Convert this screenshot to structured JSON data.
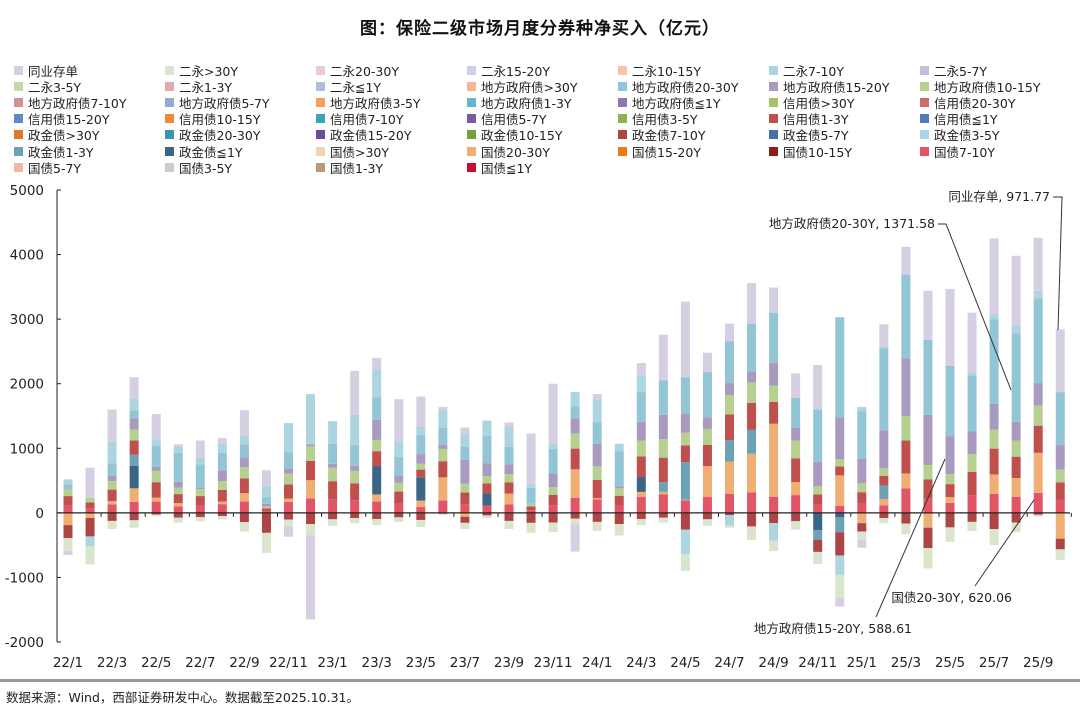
{
  "title": "图：保险二级市场月度分券种净买入（亿元）",
  "footer": "数据来源：Wind，西部证券研发中心。数据截至2025.10.31。",
  "chart_data": {
    "type": "bar",
    "stacked": true,
    "title": "图：保险二级市场月度分券种净买入（亿元）",
    "ylim": [
      -2000,
      5000
    ],
    "yticks": [
      -2000,
      -1000,
      0,
      1000,
      2000,
      3000,
      4000,
      5000
    ],
    "grid": false,
    "legend_position": "top",
    "categories": [
      "22/1",
      "22/2",
      "22/3",
      "22/4",
      "22/5",
      "22/6",
      "22/7",
      "22/8",
      "22/9",
      "22/10",
      "22/11",
      "22/12",
      "23/1",
      "23/2",
      "23/3",
      "23/4",
      "23/5",
      "23/6",
      "23/7",
      "23/8",
      "23/9",
      "23/10",
      "23/11",
      "23/12",
      "24/1",
      "24/2",
      "24/3",
      "24/4",
      "24/5",
      "24/6",
      "24/7",
      "24/8",
      "24/9",
      "24/10",
      "24/11",
      "24/12",
      "25/1",
      "25/2",
      "25/3",
      "25/4",
      "25/5",
      "25/6",
      "25/7",
      "25/8",
      "25/9",
      "25/10"
    ],
    "xtick_labels": [
      "22/1",
      "22/3",
      "22/5",
      "22/7",
      "22/9",
      "22/11",
      "23/1",
      "23/3",
      "23/5",
      "23/7",
      "23/9",
      "23/11",
      "24/1",
      "24/3",
      "24/5",
      "24/7",
      "24/9",
      "24/11",
      "25/1",
      "25/3",
      "25/5",
      "25/7",
      "25/9"
    ],
    "series": [
      {
        "name": "同业存单",
        "color": "#D5CFE1",
        "values": [
          -60,
          470,
          500,
          330,
          390,
          30,
          270,
          90,
          400,
          240,
          -160,
          -1300,
          0,
          680,
          180,
          650,
          470,
          50,
          100,
          0,
          60,
          780,
          930,
          -420,
          80,
          0,
          200,
          710,
          1170,
          300,
          270,
          630,
          390,
          380,
          690,
          -130,
          -120,
          350,
          430,
          760,
          1190,
          930,
          1170,
          1080,
          820,
          971.77
        ]
      },
      {
        "name": "二永>30Y",
        "color": "#D9E5CC",
        "values": [
          -200,
          -285,
          -125,
          -115,
          -25,
          -75,
          -65,
          -50,
          -145,
          -310,
          -105,
          -175,
          -100,
          -80,
          -95,
          -70,
          -110,
          -15,
          -95,
          -40,
          -125,
          -155,
          -150,
          -90,
          -140,
          -175,
          -95,
          -75,
          -260,
          -100,
          -35,
          -210,
          -160,
          -130,
          -185,
          -360,
          -130,
          -80,
          -165,
          -315,
          -225,
          -140,
          -250,
          -150,
          -30,
          -165
        ]
      },
      {
        "name": "二永20-30Y",
        "color": "#EBCBCB"
      },
      {
        "name": "二永15-20Y",
        "color": "#C9D2E4"
      },
      {
        "name": "二永10-15Y",
        "color": "#FAC3A6"
      },
      {
        "name": "二永7-10Y",
        "color": "#ADD5E0",
        "values": [
          80,
          -150,
          330,
          180,
          100,
          100,
          100,
          140,
          130,
          180,
          450,
          780,
          350,
          470,
          430,
          240,
          120,
          270,
          200,
          240,
          320,
          60,
          80,
          220,
          360,
          120,
          250,
          0,
          -380,
          0,
          -160,
          0,
          -270,
          0,
          0,
          -300,
          70,
          20,
          0,
          0,
          0,
          40,
          80,
          120,
          120,
          0
        ]
      },
      {
        "name": "二永5-7Y",
        "color": "#C7BDD9"
      },
      {
        "name": "二永3-5Y",
        "color": "#C3D9A6"
      },
      {
        "name": "二永1-3Y",
        "color": "#DFAAAA"
      },
      {
        "name": "二永≦1Y",
        "color": "#AEBFDD"
      },
      {
        "name": "地方政府债>30Y",
        "color": "#F8B495"
      },
      {
        "name": "地方政府债20-30Y",
        "color": "#92C5D6",
        "values": [
          70,
          0,
          200,
          130,
          330,
          450,
          360,
          270,
          200,
          100,
          250,
          0,
          310,
          320,
          350,
          300,
          300,
          270,
          200,
          420,
          270,
          250,
          380,
          190,
          330,
          540,
          460,
          530,
          560,
          700,
          650,
          740,
          780,
          460,
          810,
          1550,
          730,
          1270,
          1300,
          1160,
          1090,
          870,
          1310,
          1371.58,
          1310,
          820
        ]
      },
      {
        "name": "地方政府债15-20Y",
        "color": "#A99BC0",
        "values": [
          0,
          0,
          80,
          170,
          60,
          90,
          20,
          170,
          150,
          40,
          80,
          30,
          60,
          80,
          310,
          100,
          150,
          60,
          370,
          200,
          150,
          0,
          210,
          230,
          350,
          30,
          290,
          380,
          300,
          180,
          190,
          170,
          350,
          200,
          380,
          650,
          380,
          590,
          890,
          780,
          588.61,
          350,
          400,
          290,
          350,
          380
        ]
      },
      {
        "name": "地方政府债10-15Y",
        "color": "#B6D08F",
        "values": [
          110,
          70,
          130,
          170,
          175,
          100,
          110,
          135,
          175,
          30,
          170,
          225,
          210,
          195,
          175,
          140,
          90,
          190,
          135,
          115,
          130,
          40,
          120,
          235,
          210,
          115,
          245,
          285,
          195,
          245,
          295,
          315,
          250,
          275,
          125,
          110,
          140,
          115,
          380,
          220,
          155,
          275,
          295,
          250,
          310,
          200
        ]
      },
      {
        "name": "地方政府债7-10Y",
        "color": "#D49393"
      },
      {
        "name": "地方政府债5-7Y",
        "color": "#95ABD4"
      },
      {
        "name": "地方政府债3-5Y",
        "color": "#F5A05E"
      },
      {
        "name": "地方政府债1-3Y",
        "color": "#62B7CA"
      },
      {
        "name": "地方政府债≦1Y",
        "color": "#8E78B4"
      },
      {
        "name": "信用债>30Y",
        "color": "#A3C46A"
      },
      {
        "name": "信用债20-30Y",
        "color": "#CB6C6C"
      },
      {
        "name": "信用债15-20Y",
        "color": "#5F88C4"
      },
      {
        "name": "信用债10-15Y",
        "color": "#EE8B3A"
      },
      {
        "name": "信用债7-10Y",
        "color": "#3FA2BD"
      },
      {
        "name": "信用债5-7Y",
        "color": "#7A5BA3"
      },
      {
        "name": "信用债3-5Y",
        "color": "#8DB44C"
      },
      {
        "name": "信用债1-3Y",
        "color": "#C0504D",
        "values": [
          150,
          90,
          180,
          220,
          240,
          140,
          150,
          180,
          230,
          40,
          220,
          300,
          280,
          260,
          230,
          190,
          120,
          250,
          180,
          150,
          170,
          60,
          160,
          320,
          280,
          150,
          320,
          380,
          260,
          330,
          400,
          420,
          340,
          370,
          160,
          140,
          180,
          150,
          510,
          300,
          200,
          360,
          400,
          330,
          420,
          270
        ]
      },
      {
        "name": "信用债≦1Y",
        "color": "#4F7CB8"
      },
      {
        "name": "政金债>30Y",
        "color": "#D97A2F"
      },
      {
        "name": "政金债20-30Y",
        "color": "#3797B0"
      },
      {
        "name": "政金债15-20Y",
        "color": "#6B4C9A"
      },
      {
        "name": "政金债10-15Y",
        "color": "#77A03C"
      },
      {
        "name": "政金债7-10Y",
        "color": "#AE4545",
        "values": [
          -200,
          -285,
          -125,
          -115,
          -25,
          -75,
          -65,
          -50,
          -145,
          -310,
          -105,
          -175,
          -100,
          -80,
          -95,
          -70,
          -110,
          -15,
          -95,
          -40,
          -125,
          -155,
          -150,
          -90,
          -140,
          -175,
          -95,
          -75,
          -260,
          -100,
          -35,
          -210,
          -160,
          -130,
          -185,
          -360,
          -130,
          -80,
          -165,
          -315,
          -225,
          -140,
          -250,
          -150,
          -30,
          -165
        ]
      },
      {
        "name": "政金债5-7Y",
        "color": "#4471A8"
      },
      {
        "name": "政金债3-5Y",
        "color": "#A8D8E8"
      },
      {
        "name": "政金债1-3Y",
        "color": "#6CA2B5",
        "values": [
          0,
          0,
          0,
          170,
          0,
          0,
          0,
          0,
          0,
          0,
          0,
          0,
          0,
          0,
          0,
          0,
          0,
          0,
          0,
          0,
          0,
          0,
          0,
          0,
          0,
          0,
          0,
          150,
          580,
          0,
          330,
          370,
          0,
          0,
          -150,
          -230,
          0,
          210,
          0,
          0,
          0,
          0,
          0,
          0,
          0,
          0
        ]
      },
      {
        "name": "政金债≦1Y",
        "color": "#3A6587",
        "values": [
          0,
          0,
          0,
          350,
          0,
          0,
          0,
          0,
          0,
          0,
          0,
          0,
          0,
          0,
          440,
          0,
          360,
          0,
          0,
          190,
          0,
          0,
          0,
          0,
          0,
          0,
          230,
          0,
          0,
          0,
          0,
          0,
          0,
          0,
          -270,
          -70,
          0,
          0,
          0,
          0,
          0,
          0,
          0,
          0,
          0,
          0
        ]
      },
      {
        "name": "国债>30Y",
        "color": "#EED3B5"
      },
      {
        "name": "国债20-30Y",
        "color": "#EFAE74",
        "values": [
          -190,
          -80,
          50,
          210,
          60,
          50,
          0,
          40,
          130,
          0,
          50,
          280,
          0,
          0,
          110,
          0,
          100,
          360,
          -60,
          0,
          170,
          0,
          0,
          440,
          20,
          0,
          80,
          40,
          10,
          480,
          500,
          600,
          1130,
          200,
          0,
          470,
          -160,
          100,
          230,
          -230,
          90,
          0,
          300,
          290,
          620.06,
          -400
        ]
      },
      {
        "name": "国债15-20Y",
        "color": "#F07A10"
      },
      {
        "name": "国债10-15Y",
        "color": "#901C1C"
      },
      {
        "name": "国债7-10Y",
        "color": "#E05568",
        "values": [
          110,
          70,
          130,
          170,
          175,
          100,
          110,
          135,
          175,
          30,
          170,
          225,
          210,
          195,
          175,
          140,
          90,
          190,
          135,
          115,
          130,
          40,
          120,
          235,
          210,
          115,
          245,
          285,
          195,
          245,
          295,
          315,
          250,
          275,
          125,
          110,
          140,
          115,
          380,
          220,
          155,
          275,
          295,
          250,
          310,
          200
        ]
      },
      {
        "name": "国债5-7Y",
        "color": "#F2B6A8"
      },
      {
        "name": "国债3-5Y",
        "color": "#CCCCCC"
      },
      {
        "name": "国债1-3Y",
        "color": "#B89A78"
      },
      {
        "name": "国债≦1Y",
        "color": "#C8102E"
      }
    ],
    "annotations": [
      {
        "text": "同业存单, 971.77",
        "category": "25/10",
        "value": 971.77
      },
      {
        "text": "地方政府债20-30Y, 1371.58",
        "category": "25/8",
        "value": 1371.58
      },
      {
        "text": "国债20-30Y, 620.06",
        "category": "25/9",
        "value": 620.06
      },
      {
        "text": "地方政府债15-20Y, 588.61",
        "category": "25/5",
        "value": 588.61
      }
    ]
  }
}
